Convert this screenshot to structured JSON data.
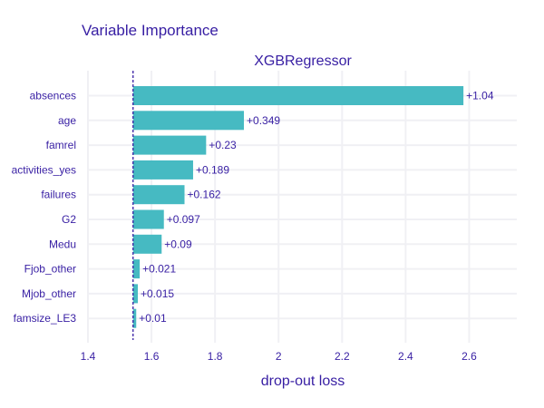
{
  "chart_data": {
    "type": "bar",
    "orientation": "horizontal",
    "title": "Variable Importance",
    "subtitle": "XGBRegressor",
    "xlabel": "drop-out loss",
    "ylabel": "",
    "xlim": [
      1.4,
      2.75
    ],
    "xticks": [
      "1.4",
      "1.6",
      "1.8",
      "2",
      "2.2",
      "2.4",
      "2.6"
    ],
    "baseline": 1.542,
    "categories": [
      "absences",
      "age",
      "famrel",
      "activities_yes",
      "failures",
      "G2",
      "Medu",
      "Fjob_other",
      "Mjob_other",
      "famsize_LE3"
    ],
    "values": [
      1.04,
      0.349,
      0.23,
      0.189,
      0.162,
      0.097,
      0.09,
      0.021,
      0.015,
      0.01
    ],
    "labels": [
      "+1.04",
      "+0.349",
      "+0.23",
      "+0.189",
      "+0.162",
      "+0.097",
      "+0.09",
      "+0.021",
      "+0.015",
      "+0.01"
    ],
    "grid": true,
    "colors": {
      "bar": "#46bac2",
      "text": "#371ea3",
      "baseline": "#371ea3",
      "grid": "#f0f0f4"
    }
  }
}
